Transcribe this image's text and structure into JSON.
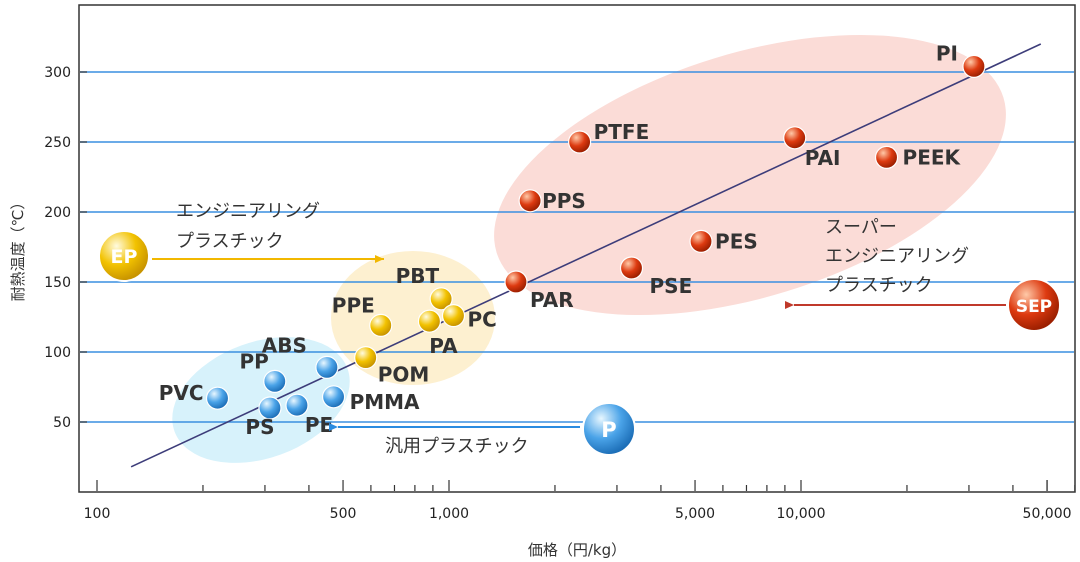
{
  "chart_data": {
    "type": "scatter",
    "xlabel": "価格（円/kg）",
    "ylabel": "耐熱温度（℃）",
    "x_scale": "log",
    "xlim": [
      100,
      60000
    ],
    "ylim": [
      0,
      330
    ],
    "x_ticks": [
      100,
      500,
      1000,
      5000,
      10000,
      50000
    ],
    "x_tick_labels": [
      "100",
      "500",
      "1,000",
      "5,000",
      "10,000",
      "50,000"
    ],
    "y_ticks": [
      50,
      100,
      150,
      200,
      250,
      300
    ],
    "y_tick_labels": [
      "50",
      "100",
      "150",
      "200",
      "250",
      "300"
    ],
    "grid": "horizontal",
    "trend_line": {
      "x": [
        125,
        48000
      ],
      "y": [
        18,
        320
      ]
    },
    "groups": [
      {
        "key": "P",
        "badge": "P",
        "label_lines": [
          "汎用プラスチック"
        ],
        "color": "#4aa3e8",
        "region_color": "#d7f2fb",
        "points": [
          {
            "name": "PVC",
            "x": 220,
            "y": 67
          },
          {
            "name": "PP",
            "x": 320,
            "y": 79
          },
          {
            "name": "ABS",
            "x": 450,
            "y": 89
          },
          {
            "name": "PS",
            "x": 310,
            "y": 60
          },
          {
            "name": "PE",
            "x": 370,
            "y": 62
          },
          {
            "name": "PMMA",
            "x": 470,
            "y": 68
          }
        ]
      },
      {
        "key": "EP",
        "badge": "EP",
        "label_lines": [
          "エンジニアリング",
          "プラスチック"
        ],
        "color": "#f2c200",
        "region_color": "#fdf0d0",
        "points": [
          {
            "name": "PPE",
            "x": 640,
            "y": 119
          },
          {
            "name": "PBT",
            "x": 950,
            "y": 138
          },
          {
            "name": "PA",
            "x": 880,
            "y": 122
          },
          {
            "name": "PC",
            "x": 1030,
            "y": 126
          },
          {
            "name": "POM",
            "x": 580,
            "y": 96
          }
        ]
      },
      {
        "key": "SEP",
        "badge": "SEP",
        "label_lines": [
          "スーパー",
          "エンジニアリング",
          "プラスチック"
        ],
        "color": "#cc3300",
        "region_color": "#fbdcd7",
        "points": [
          {
            "name": "PI",
            "x": 31000,
            "y": 304
          },
          {
            "name": "PTFE",
            "x": 2350,
            "y": 250
          },
          {
            "name": "PAI",
            "x": 9600,
            "y": 253
          },
          {
            "name": "PEEK",
            "x": 17500,
            "y": 239
          },
          {
            "name": "PPS",
            "x": 1700,
            "y": 208
          },
          {
            "name": "PES",
            "x": 5200,
            "y": 179
          },
          {
            "name": "PSE",
            "x": 3300,
            "y": 160
          },
          {
            "name": "PAR",
            "x": 1550,
            "y": 150
          }
        ]
      }
    ]
  }
}
